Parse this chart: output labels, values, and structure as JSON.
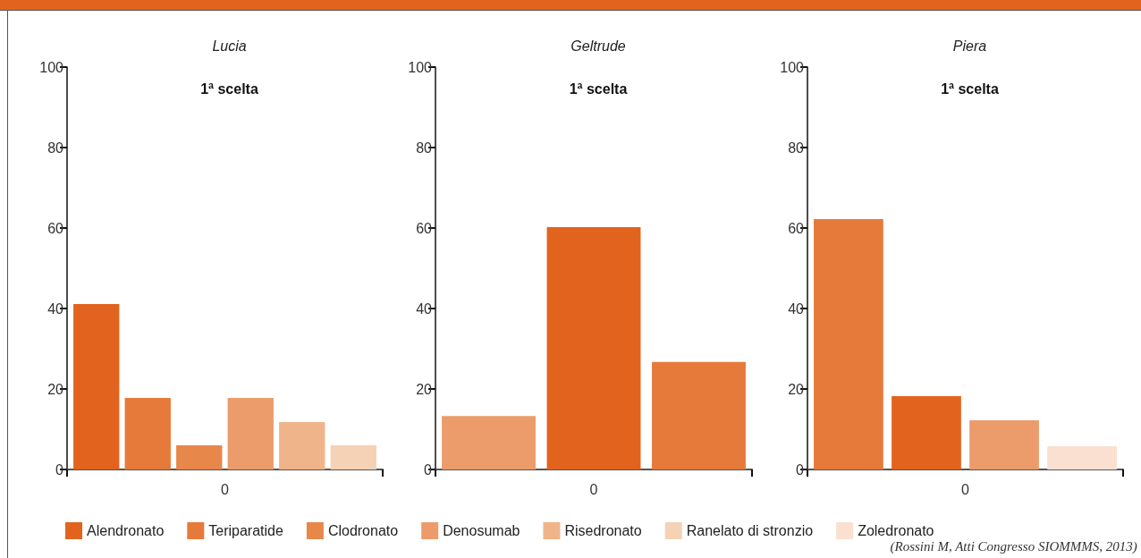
{
  "chart_data": [
    {
      "type": "bar",
      "title": "Lucia",
      "subtitle": "1ª scelta",
      "categories": [
        "0"
      ],
      "ylim": [
        0,
        100
      ],
      "yticks": [
        0,
        20,
        40,
        60,
        80,
        100
      ],
      "grid": false,
      "legend": "bottom",
      "series": [
        {
          "name": "Alendronato",
          "color": "#e2631e",
          "values": [
            41.1
          ]
        },
        {
          "name": "Teriparatide",
          "color": "#e67a3a",
          "values": [
            17.8
          ]
        },
        {
          "name": "Clodronato",
          "color": "#e8874a",
          "values": [
            6
          ]
        },
        {
          "name": "Denosumab",
          "color": "#ec9c6b",
          "values": [
            17.8
          ]
        },
        {
          "name": "Risedronato",
          "color": "#f0b48a",
          "values": [
            11.8
          ]
        },
        {
          "name": "Ranelato di stronzio",
          "color": "#f5d1b5",
          "values": [
            6
          ]
        },
        {
          "name": "Zoledronato",
          "color": "#fae0d0",
          "values": [
            null
          ]
        }
      ]
    },
    {
      "type": "bar",
      "title": "Geltrude",
      "subtitle": "1ª scelta",
      "categories": [
        "0"
      ],
      "ylim": [
        0,
        100
      ],
      "yticks": [
        0,
        20,
        40,
        60,
        80,
        100
      ],
      "grid": false,
      "series": [
        {
          "color": "#ec9c6b",
          "values": [
            13.3
          ]
        },
        {
          "color": "#e2631e",
          "values": [
            60.2
          ]
        },
        {
          "color": "#e67a3a",
          "values": [
            26.7
          ]
        }
      ]
    },
    {
      "type": "bar",
      "title": "Piera",
      "subtitle": "1ª scelta",
      "categories": [
        "0"
      ],
      "ylim": [
        0,
        100
      ],
      "yticks": [
        0,
        20,
        40,
        60,
        80,
        100
      ],
      "grid": false,
      "annotations": [
        "(Rossini M, Atti Congresso SIOMMMS, 2013)"
      ],
      "series": [
        {
          "color": "#e67a3a",
          "values": [
            62.2
          ]
        },
        {
          "color": "#e2631e",
          "values": [
            18.2
          ]
        },
        {
          "color": "#ec9c6b",
          "values": [
            12.2
          ]
        },
        {
          "color": "#fae0d0",
          "values": [
            5.8
          ]
        }
      ]
    }
  ]
}
